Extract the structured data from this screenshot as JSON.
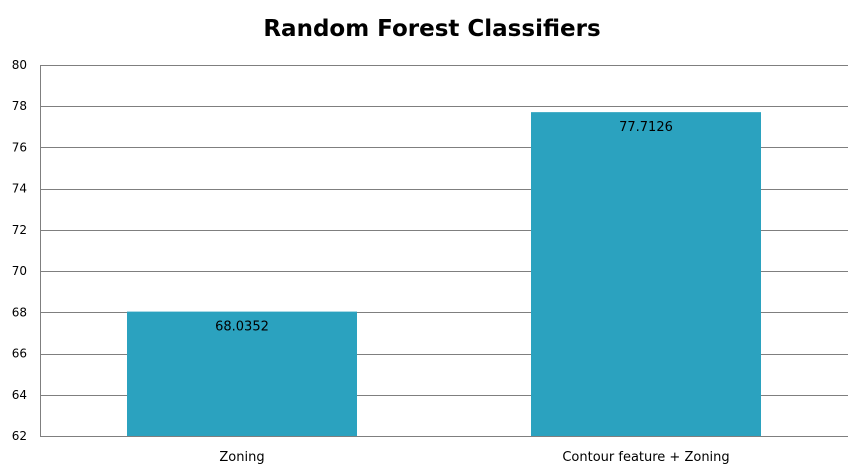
{
  "chart_data": {
    "type": "bar",
    "title": "Random Forest Classifiers",
    "xlabel": "",
    "ylabel": "",
    "categories": [
      "Zoning",
      "Contour feature + Zoning"
    ],
    "values": [
      68.0352,
      77.7126
    ],
    "data_labels": [
      "68.0352",
      "77.7126"
    ],
    "ylim": [
      62,
      80
    ],
    "yticks": [
      62,
      64,
      66,
      68,
      70,
      72,
      74,
      76,
      78,
      80
    ],
    "grid": true,
    "legend": "none",
    "bar_color": "#2ba2bf",
    "grid_color": "#7f7f7f"
  }
}
